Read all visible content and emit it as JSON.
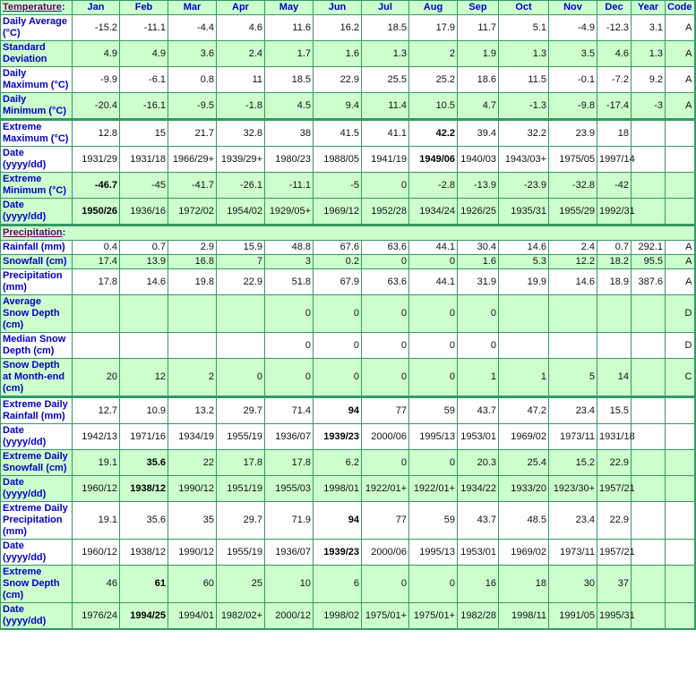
{
  "colors": {
    "green_row": "#ccffcc",
    "label": "#0000cc",
    "section": "#660066",
    "border": "#339966"
  },
  "temperature_header": {
    "label": "Temperature",
    "columns": [
      "Jan",
      "Feb",
      "Mar",
      "Apr",
      "May",
      "Jun",
      "Jul",
      "Aug",
      "Sep",
      "Oct",
      "Nov",
      "Dec",
      "Year",
      "Code"
    ]
  },
  "temperature_rows": [
    {
      "label": "Daily Average (°C)",
      "bg": "white",
      "values": [
        "-15.2",
        "-11.1",
        "-4.4",
        "4.6",
        "11.6",
        "16.2",
        "18.5",
        "17.9",
        "11.7",
        "5.1",
        "-4.9",
        "-12.3",
        "3.1",
        "A"
      ],
      "bold": []
    },
    {
      "label": "Standard Deviation",
      "bg": "green",
      "values": [
        "4.9",
        "4.9",
        "3.6",
        "2.4",
        "1.7",
        "1.6",
        "1.3",
        "2",
        "1.9",
        "1.3",
        "3.5",
        "4.6",
        "1.3",
        "A"
      ],
      "bold": []
    },
    {
      "label": "Daily Maximum (°C)",
      "bg": "white",
      "values": [
        "-9.9",
        "-6.1",
        "0.8",
        "11",
        "18.5",
        "22.9",
        "25.5",
        "25.2",
        "18.6",
        "11.5",
        "-0.1",
        "-7.2",
        "9.2",
        "A"
      ],
      "bold": []
    },
    {
      "label": "Daily Minimum (°C)",
      "bg": "green",
      "values": [
        "-20.4",
        "-16.1",
        "-9.5",
        "-1.8",
        "4.5",
        "9.4",
        "11.4",
        "10.5",
        "4.7",
        "-1.3",
        "-9.8",
        "-17.4",
        "-3",
        "A"
      ],
      "bold": []
    },
    {
      "label": "Extreme Maximum (°C)",
      "bg": "white",
      "group": true,
      "values": [
        "12.8",
        "15",
        "21.7",
        "32.8",
        "38",
        "41.5",
        "41.1",
        "42.2",
        "39.4",
        "32.2",
        "23.9",
        "18",
        "",
        ""
      ],
      "bold": [
        7
      ]
    },
    {
      "label": "Date (yyyy/dd)",
      "bg": "white",
      "values": [
        "1931/29",
        "1931/18",
        "1966/29+",
        "1939/29+",
        "1980/23",
        "1988/05",
        "1941/19",
        "1949/06",
        "1940/03",
        "1943/03+",
        "1975/05",
        "1997/14",
        "",
        ""
      ],
      "bold": [
        7
      ]
    },
    {
      "label": "Extreme Minimum (°C)",
      "bg": "green",
      "values": [
        "-46.7",
        "-45",
        "-41.7",
        "-26.1",
        "-11.1",
        "-5",
        "0",
        "-2.8",
        "-13.9",
        "-23.9",
        "-32.8",
        "-42",
        "",
        ""
      ],
      "bold": [
        0
      ]
    },
    {
      "label": "Date (yyyy/dd)",
      "bg": "green",
      "values": [
        "1950/26",
        "1936/16",
        "1972/02",
        "1954/02",
        "1929/05+",
        "1969/12",
        "1952/28",
        "1934/24",
        "1926/25",
        "1935/31",
        "1955/29",
        "1992/31",
        "",
        ""
      ],
      "bold": [
        0
      ]
    }
  ],
  "precipitation_header": {
    "label": "Precipitation"
  },
  "precipitation_rows": [
    {
      "label": "Rainfall (mm)",
      "bg": "white",
      "values": [
        "0.4",
        "0.7",
        "2.9",
        "15.9",
        "48.8",
        "67.6",
        "63.6",
        "44.1",
        "30.4",
        "14.6",
        "2.4",
        "0.7",
        "292.1",
        "A"
      ],
      "bold": []
    },
    {
      "label": "Snowfall (cm)",
      "bg": "green",
      "values": [
        "17.4",
        "13.9",
        "16.8",
        "7",
        "3",
        "0.2",
        "0",
        "0",
        "1.6",
        "5.3",
        "12.2",
        "18.2",
        "95.5",
        "A"
      ],
      "bold": []
    },
    {
      "label": "Precipitation (mm)",
      "bg": "white",
      "values": [
        "17.8",
        "14.6",
        "19.8",
        "22.9",
        "51.8",
        "67.9",
        "63.6",
        "44.1",
        "31.9",
        "19.9",
        "14.6",
        "18.9",
        "387.6",
        "A"
      ],
      "bold": []
    },
    {
      "label": "Average Snow Depth (cm)",
      "bg": "green",
      "values": [
        "",
        "",
        "",
        "",
        "0",
        "0",
        "0",
        "0",
        "0",
        "",
        "",
        "",
        "",
        "D"
      ],
      "bold": []
    },
    {
      "label": "Median Snow Depth (cm)",
      "bg": "white",
      "values": [
        "",
        "",
        "",
        "",
        "0",
        "0",
        "0",
        "0",
        "0",
        "",
        "",
        "",
        "",
        "D"
      ],
      "bold": []
    },
    {
      "label": "Snow Depth at Month-end (cm)",
      "bg": "green",
      "values": [
        "20",
        "12",
        "2",
        "0",
        "0",
        "0",
        "0",
        "0",
        "1",
        "1",
        "5",
        "14",
        "",
        "C"
      ],
      "bold": []
    },
    {
      "label": "Extreme Daily Rainfall (mm)",
      "bg": "white",
      "group": true,
      "values": [
        "12.7",
        "10.9",
        "13.2",
        "29.7",
        "71.4",
        "94",
        "77",
        "59",
        "43.7",
        "47.2",
        "23.4",
        "15.5",
        "",
        ""
      ],
      "bold": [
        5
      ]
    },
    {
      "label": "Date (yyyy/dd)",
      "bg": "white",
      "values": [
        "1942/13",
        "1971/16",
        "1934/19",
        "1955/19",
        "1936/07",
        "1939/23",
        "2000/06",
        "1995/13",
        "1953/01",
        "1969/02",
        "1973/11",
        "1931/18",
        "",
        ""
      ],
      "bold": [
        5
      ]
    },
    {
      "label": "Extreme Daily Snowfall (cm)",
      "bg": "green",
      "values": [
        "19.1",
        "35.6",
        "22",
        "17.8",
        "17.8",
        "6.2",
        "0",
        "0",
        "20.3",
        "25.4",
        "15.2",
        "22.9",
        "",
        ""
      ],
      "bold": [
        1
      ]
    },
    {
      "label": "Date (yyyy/dd)",
      "bg": "green",
      "values": [
        "1960/12",
        "1938/12",
        "1990/12",
        "1951/19",
        "1955/03",
        "1998/01",
        "1922/01+",
        "1922/01+",
        "1934/22",
        "1933/20",
        "1923/30+",
        "1957/21",
        "",
        ""
      ],
      "bold": [
        1
      ]
    },
    {
      "label": "Extreme Daily Precipitation (mm)",
      "bg": "white",
      "values": [
        "19.1",
        "35.6",
        "35",
        "29.7",
        "71.9",
        "94",
        "77",
        "59",
        "43.7",
        "48.5",
        "23.4",
        "22.9",
        "",
        ""
      ],
      "bold": [
        5
      ]
    },
    {
      "label": "Date (yyyy/dd)",
      "bg": "white",
      "values": [
        "1960/12",
        "1938/12",
        "1990/12",
        "1955/19",
        "1936/07",
        "1939/23",
        "2000/06",
        "1995/13",
        "1953/01",
        "1969/02",
        "1973/11",
        "1957/21",
        "",
        ""
      ],
      "bold": [
        5
      ]
    },
    {
      "label": "Extreme Snow Depth (cm)",
      "bg": "green",
      "values": [
        "46",
        "61",
        "60",
        "25",
        "10",
        "6",
        "0",
        "0",
        "16",
        "18",
        "30",
        "37",
        "",
        ""
      ],
      "bold": [
        1
      ]
    },
    {
      "label": "Date (yyyy/dd)",
      "bg": "green",
      "values": [
        "1976/24",
        "1994/25",
        "1994/01",
        "1982/02+",
        "2000/12",
        "1998/02",
        "1975/01+",
        "1975/01+",
        "1982/28",
        "1998/11",
        "1991/05",
        "1995/31",
        "",
        ""
      ],
      "bold": [
        1
      ]
    }
  ]
}
